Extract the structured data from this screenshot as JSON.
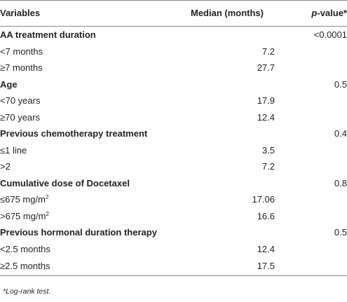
{
  "header": {
    "variables": "Variables",
    "median": "Median (months)",
    "p_prefix": "p",
    "p_suffix": "-value*"
  },
  "rows": [
    {
      "label": "AA treatment duration",
      "median": "",
      "p": "<0.0001",
      "group": true
    },
    {
      "label": "<7 months",
      "median": "7.2",
      "p": "",
      "group": false
    },
    {
      "label": "≥7 months",
      "median": "27.7",
      "p": "",
      "group": false
    },
    {
      "label": "Age",
      "median": "",
      "p": "0.5",
      "group": true
    },
    {
      "label": "<70 years",
      "median": "17.9",
      "p": "",
      "group": false
    },
    {
      "label": "≥70 years",
      "median": "12.4",
      "p": "",
      "group": false
    },
    {
      "label": "Previous chemotherapy treatment",
      "median": "",
      "p": "0.4",
      "group": true
    },
    {
      "label": "≤1 line",
      "median": "3.5",
      "p": "",
      "group": false
    },
    {
      "label": ">2",
      "median": "7.2",
      "p": "",
      "group": false
    },
    {
      "label": "Cumulative dose of Docetaxel",
      "median": "",
      "p": "0.8",
      "group": true
    },
    {
      "label": "≤675 mg/m",
      "sup": "2",
      "median": "17.06",
      "p": "",
      "group": false
    },
    {
      "label": ">675 mg/m",
      "sup": "2",
      "median": "16.6",
      "p": "",
      "group": false
    },
    {
      "label": "Previous hormonal duration therapy",
      "median": "",
      "p": "0.5",
      "group": true
    },
    {
      "label": "<2.5 months",
      "median": "12.4",
      "p": "",
      "group": false
    },
    {
      "label": "≥2.5 months",
      "median": "17.5",
      "p": "",
      "group": false
    }
  ],
  "footnote": "*Log-rank test."
}
